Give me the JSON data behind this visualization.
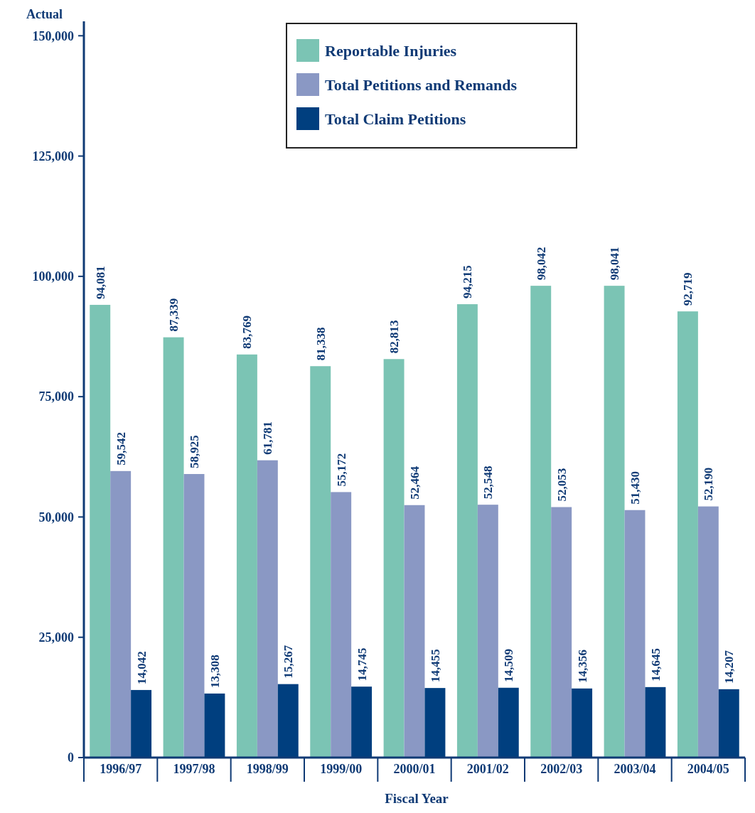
{
  "chart_data": {
    "type": "bar",
    "ylabel": "Actual",
    "xlabel": "Fiscal Year",
    "categories": [
      "1996/97",
      "1997/98",
      "1998/99",
      "1999/00",
      "2000/01",
      "2001/02",
      "2002/03",
      "2003/04",
      "2004/05"
    ],
    "series": [
      {
        "name": "Reportable Injuries",
        "color": "#7bc4b4",
        "values": [
          94081,
          87339,
          83769,
          81338,
          82813,
          94215,
          98042,
          98041,
          92719
        ],
        "value_labels": [
          "94,081",
          "87,339",
          "83,769",
          "81,338",
          "82,813",
          "94,215",
          "98,042",
          "98,041",
          "92,719"
        ]
      },
      {
        "name": "Total Petitions and Remands",
        "color": "#8a98c4",
        "values": [
          59542,
          58925,
          61781,
          55172,
          52464,
          52548,
          52053,
          51430,
          52190
        ],
        "value_labels": [
          "59,542",
          "58,925",
          "61,781",
          "55,172",
          "52,464",
          "52,548",
          "52,053",
          "51,430",
          "52,190"
        ]
      },
      {
        "name": "Total Claim Petitions",
        "color": "#003f7f",
        "values": [
          14042,
          13308,
          15267,
          14745,
          14455,
          14509,
          14356,
          14645,
          14207
        ],
        "value_labels": [
          "14,042",
          "13,308",
          "15,267",
          "14,745",
          "14,455",
          "14,509",
          "14,356",
          "14,645",
          "14,207"
        ]
      }
    ],
    "ylim": [
      0,
      153000
    ],
    "yticks": [
      {
        "value": 0,
        "label": "0"
      },
      {
        "value": 25000,
        "label": "25,000"
      },
      {
        "value": 50000,
        "label": "50,000"
      },
      {
        "value": 75000,
        "label": "75,000"
      },
      {
        "value": 100000,
        "label": "100,000"
      },
      {
        "value": 125000,
        "label": "125,000"
      },
      {
        "value": 150000,
        "label": "150,000"
      }
    ],
    "legend": "top",
    "grid": false
  }
}
